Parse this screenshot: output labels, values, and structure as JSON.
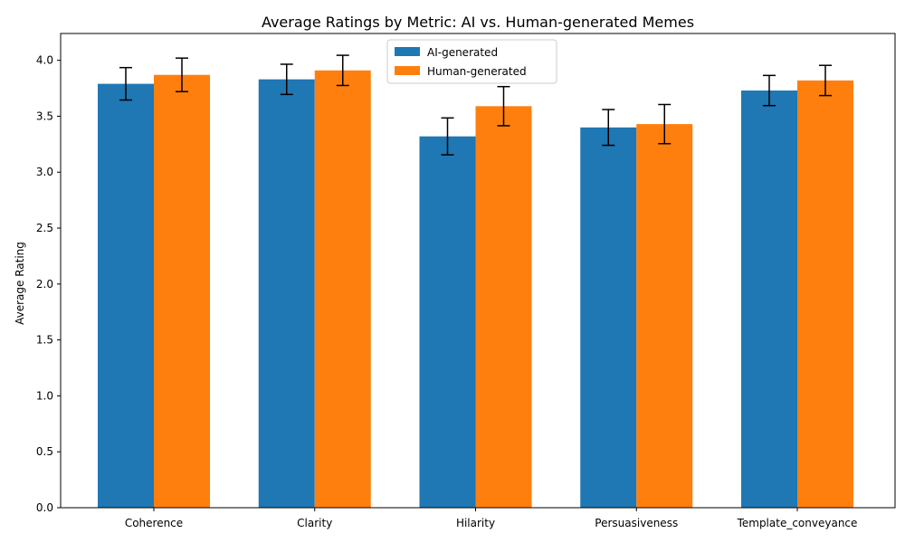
{
  "chart_data": {
    "type": "bar",
    "title": "Average Ratings by Metric: AI vs. Human-generated Memes",
    "xlabel": "",
    "ylabel": "Average Rating",
    "categories": [
      "Coherence",
      "Clarity",
      "Hilarity",
      "Persuasiveness",
      "Template_conveyance"
    ],
    "series": [
      {
        "name": "AI-generated",
        "color": "#1f77b4",
        "values": [
          3.79,
          3.83,
          3.32,
          3.4,
          3.73
        ],
        "errors": [
          0.145,
          0.135,
          0.165,
          0.16,
          0.135
        ]
      },
      {
        "name": "Human-generated",
        "color": "#ff7f0e",
        "values": [
          3.87,
          3.91,
          3.59,
          3.43,
          3.82
        ],
        "errors": [
          0.15,
          0.135,
          0.175,
          0.175,
          0.135
        ]
      }
    ],
    "ylim": [
      0,
      4.24
    ],
    "yticks": [
      "0.0",
      "0.5",
      "1.0",
      "1.5",
      "2.0",
      "2.5",
      "3.0",
      "3.5",
      "4.0"
    ],
    "legend_position": "top-center",
    "grid": false
  }
}
